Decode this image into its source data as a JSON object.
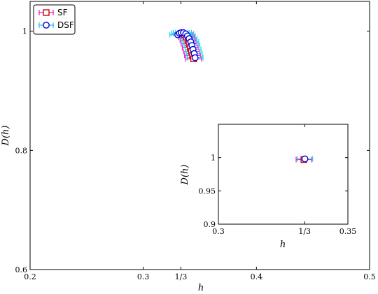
{
  "colors": {
    "sf_marker": "#d40000",
    "sf_error": "#e020d0",
    "dsf_marker": "#0000dd",
    "dsf_error": "#20d0e0"
  },
  "chart_data": [
    {
      "type": "scatter",
      "xlabel": "h",
      "ylabel": "D(h)",
      "xlim": [
        0.2,
        0.5
      ],
      "ylim": [
        0.6,
        1.05
      ],
      "xticks": [
        {
          "value": 0.2,
          "label": "0.2"
        },
        {
          "value": 0.3,
          "label": "0.3"
        },
        {
          "value": 0.3333,
          "label": "1/3"
        },
        {
          "value": 0.4,
          "label": "0.4"
        },
        {
          "value": 0.5,
          "label": "0.5"
        }
      ],
      "yticks": [
        {
          "value": 0.6,
          "label": "0.6"
        },
        {
          "value": 0.8,
          "label": "0.8"
        },
        {
          "value": 1.0,
          "label": "1"
        }
      ],
      "legend": {
        "position": "top-left",
        "entries": [
          "SF",
          "DSF"
        ]
      },
      "series": [
        {
          "name": "SF",
          "marker": "square",
          "points": [
            {
              "x": 0.3335,
              "y": 0.9965,
              "xerr": 0.007
            },
            {
              "x": 0.3365,
              "y": 0.994,
              "xerr": 0.007
            },
            {
              "x": 0.338,
              "y": 0.99,
              "xerr": 0.007
            },
            {
              "x": 0.3395,
              "y": 0.985,
              "xerr": 0.007
            },
            {
              "x": 0.3405,
              "y": 0.979,
              "xerr": 0.007
            },
            {
              "x": 0.3415,
              "y": 0.9725,
              "xerr": 0.007
            },
            {
              "x": 0.3425,
              "y": 0.966,
              "xerr": 0.007
            },
            {
              "x": 0.3435,
              "y": 0.9595,
              "xerr": 0.007
            },
            {
              "x": 0.3445,
              "y": 0.9535,
              "xerr": 0.007
            }
          ]
        },
        {
          "name": "DSF",
          "marker": "circle",
          "points": [
            {
              "x": 0.3305,
              "y": 0.994,
              "xerr": 0.007
            },
            {
              "x": 0.332,
              "y": 0.9965,
              "xerr": 0.007
            },
            {
              "x": 0.3335,
              "y": 0.9975,
              "xerr": 0.007
            },
            {
              "x": 0.3355,
              "y": 0.9975,
              "xerr": 0.007
            },
            {
              "x": 0.3375,
              "y": 0.9955,
              "xerr": 0.007
            },
            {
              "x": 0.339,
              "y": 0.992,
              "xerr": 0.007
            },
            {
              "x": 0.3405,
              "y": 0.9875,
              "xerr": 0.007
            },
            {
              "x": 0.342,
              "y": 0.982,
              "xerr": 0.007
            },
            {
              "x": 0.343,
              "y": 0.976,
              "xerr": 0.007
            },
            {
              "x": 0.344,
              "y": 0.9695,
              "xerr": 0.007
            },
            {
              "x": 0.345,
              "y": 0.9625,
              "xerr": 0.007
            },
            {
              "x": 0.3458,
              "y": 0.9555,
              "xerr": 0.007
            }
          ]
        }
      ]
    },
    {
      "type": "scatter",
      "inset": true,
      "xlabel": "h",
      "ylabel": "D(h)",
      "xlim": [
        0.3,
        0.35
      ],
      "ylim": [
        0.9,
        1.05
      ],
      "xticks": [
        {
          "value": 0.3,
          "label": "0.3"
        },
        {
          "value": 0.3333,
          "label": "1/3"
        },
        {
          "value": 0.35,
          "label": "0.35"
        }
      ],
      "yticks": [
        {
          "value": 0.9,
          "label": "0.9"
        },
        {
          "value": 0.95,
          "label": "0.95"
        },
        {
          "value": 1.0,
          "label": "1"
        }
      ],
      "series": [
        {
          "name": "SF",
          "marker": "square",
          "points": [
            {
              "x": 0.333,
              "y": 0.997,
              "xerr": 0.003
            }
          ]
        },
        {
          "name": "DSF",
          "marker": "circle",
          "points": [
            {
              "x": 0.3334,
              "y": 0.998,
              "xerr": 0.003
            }
          ]
        }
      ]
    }
  ]
}
